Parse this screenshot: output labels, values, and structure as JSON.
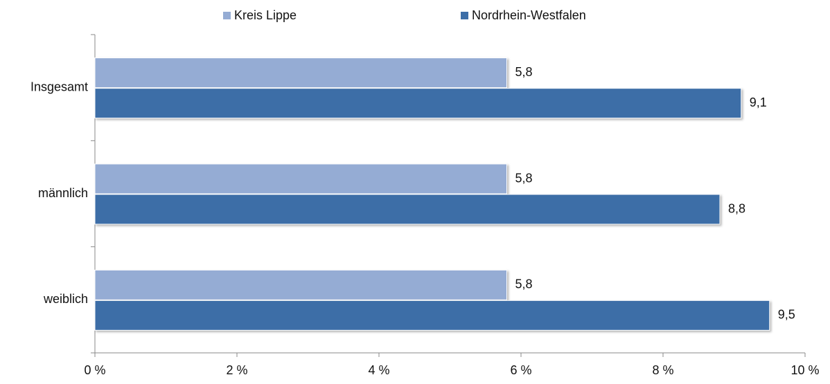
{
  "chart_data": {
    "type": "hbar",
    "categories": [
      "Insgesamt",
      "männlich",
      "weiblich"
    ],
    "series": [
      {
        "name": "Kreis Lippe",
        "color": "#95acd4",
        "values": [
          5.8,
          5.8,
          5.8
        ],
        "value_labels": [
          "5,8",
          "5,8",
          "5,8"
        ]
      },
      {
        "name": "Nordrhein-Westfalen",
        "color": "#3c6ea7",
        "values": [
          9.1,
          8.8,
          9.5
        ],
        "value_labels": [
          "9,1",
          "8,8",
          "9,5"
        ]
      }
    ],
    "xlim": [
      0,
      10
    ],
    "xticks": [
      {
        "value": 0,
        "label": "0 %"
      },
      {
        "value": 2,
        "label": "2 %"
      },
      {
        "value": 4,
        "label": "4 %"
      },
      {
        "value": 6,
        "label": "6 %"
      },
      {
        "value": 8,
        "label": "8 %"
      },
      {
        "value": 10,
        "label": "10 %"
      }
    ],
    "legend": "top"
  }
}
